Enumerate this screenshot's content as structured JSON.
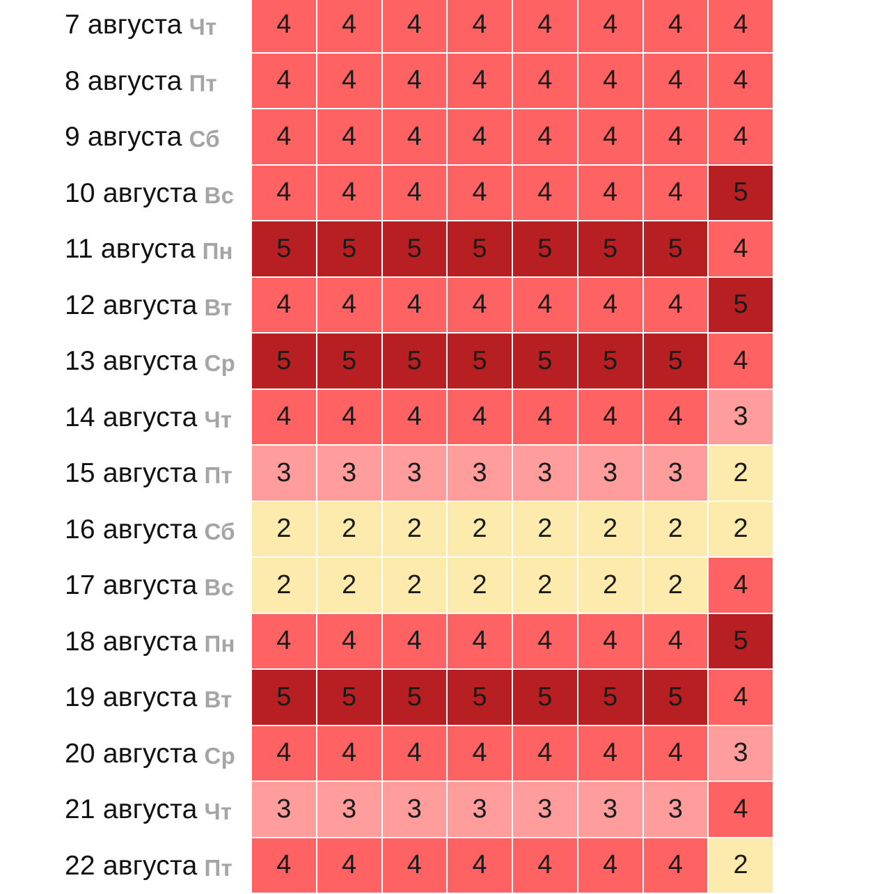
{
  "level_colors": {
    "2": "#fcebac",
    "3": "#ff9d9d",
    "4": "#ff6262",
    "5": "#b71f22"
  },
  "rows": [
    {
      "date": "7 августа",
      "weekday": "Чт",
      "values": [
        4,
        4,
        4,
        4,
        4,
        4,
        4,
        4
      ]
    },
    {
      "date": "8 августа",
      "weekday": "Пт",
      "values": [
        4,
        4,
        4,
        4,
        4,
        4,
        4,
        4
      ]
    },
    {
      "date": "9 августа",
      "weekday": "Сб",
      "values": [
        4,
        4,
        4,
        4,
        4,
        4,
        4,
        4
      ]
    },
    {
      "date": "10 августа",
      "weekday": "Вс",
      "values": [
        4,
        4,
        4,
        4,
        4,
        4,
        4,
        5
      ]
    },
    {
      "date": "11 августа",
      "weekday": "Пн",
      "values": [
        5,
        5,
        5,
        5,
        5,
        5,
        5,
        4
      ]
    },
    {
      "date": "12 августа",
      "weekday": "Вт",
      "values": [
        4,
        4,
        4,
        4,
        4,
        4,
        4,
        5
      ]
    },
    {
      "date": "13 августа",
      "weekday": "Ср",
      "values": [
        5,
        5,
        5,
        5,
        5,
        5,
        5,
        4
      ]
    },
    {
      "date": "14 августа",
      "weekday": "Чт",
      "values": [
        4,
        4,
        4,
        4,
        4,
        4,
        4,
        3
      ]
    },
    {
      "date": "15 августа",
      "weekday": "Пт",
      "values": [
        3,
        3,
        3,
        3,
        3,
        3,
        3,
        2
      ]
    },
    {
      "date": "16 августа",
      "weekday": "Сб",
      "values": [
        2,
        2,
        2,
        2,
        2,
        2,
        2,
        2
      ]
    },
    {
      "date": "17 августа",
      "weekday": "Вс",
      "values": [
        2,
        2,
        2,
        2,
        2,
        2,
        2,
        4
      ]
    },
    {
      "date": "18 августа",
      "weekday": "Пн",
      "values": [
        4,
        4,
        4,
        4,
        4,
        4,
        4,
        5
      ]
    },
    {
      "date": "19 августа",
      "weekday": "Вт",
      "values": [
        5,
        5,
        5,
        5,
        5,
        5,
        5,
        4
      ]
    },
    {
      "date": "20 августа",
      "weekday": "Ср",
      "values": [
        4,
        4,
        4,
        4,
        4,
        4,
        4,
        3
      ]
    },
    {
      "date": "21 августа",
      "weekday": "Чт",
      "values": [
        3,
        3,
        3,
        3,
        3,
        3,
        3,
        4
      ]
    },
    {
      "date": "22 августа",
      "weekday": "Пт",
      "values": [
        4,
        4,
        4,
        4,
        4,
        4,
        4,
        2
      ]
    }
  ]
}
